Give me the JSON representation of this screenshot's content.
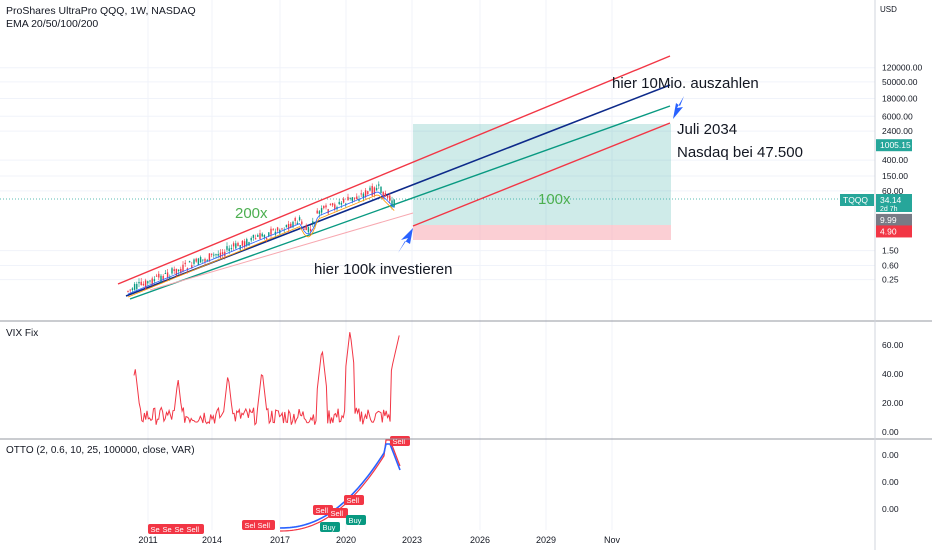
{
  "header": {
    "symbol_line": "ProShares UltraPro QQQ, 1W, NASDAQ",
    "indicator_line": "EMA 20/50/100/200",
    "currency": "USD"
  },
  "price_axis": {
    "ticks": [
      "120000.00",
      "50000.00",
      "18000.00",
      "6000.00",
      "2400.00",
      "1005.15",
      "400.00",
      "150.00",
      "60.00",
      "9.99",
      "4.90",
      "1.50",
      "0.60",
      "0.25"
    ],
    "ticks_display": [
      {
        "label": "120000.00",
        "value": 120000
      },
      {
        "label": "50000.00",
        "value": 50000
      },
      {
        "label": "18000.00",
        "value": 18000
      },
      {
        "label": "6000.00",
        "value": 6000
      },
      {
        "label": "2400.00",
        "value": 2400
      },
      {
        "label": "400.00",
        "value": 400
      },
      {
        "label": "150.00",
        "value": 150
      },
      {
        "label": "60.00",
        "value": 60
      },
      {
        "label": "1.50",
        "value": 1.5
      },
      {
        "label": "0.60",
        "value": 0.6
      },
      {
        "label": "0.25",
        "value": 0.25
      }
    ],
    "badges": [
      {
        "label": "1005.15",
        "value": 1005.15,
        "color": "#26a69a"
      },
      {
        "label": "34.14",
        "value": 34.14,
        "color": "#26a69a",
        "sub": "2d 7h"
      },
      {
        "label": "9.99",
        "value": 9.99,
        "color": "#787b86"
      },
      {
        "label": "4.90",
        "value": 4.9,
        "color": "#f23645"
      }
    ],
    "symbol_tag": "TQQQ"
  },
  "time_axis": {
    "labels": [
      "2011",
      "2014",
      "2017",
      "2020",
      "2023",
      "2026",
      "2029",
      "Nov"
    ]
  },
  "annotations": {
    "payout": "hier 10Mio. auszahlen",
    "date_target": "Juli 2034",
    "nasdaq_target": "Nasdaq bei 47.500",
    "invest": "hier 100k investieren",
    "x200": "200x",
    "x100": "100x"
  },
  "vix_pane": {
    "title": "VIX Fix",
    "ticks": [
      "60.00",
      "40.00",
      "20.00",
      "0.00"
    ]
  },
  "otto_pane": {
    "title": "OTTO (2, 0.6, 10, 25, 100000, close, VAR)",
    "ticks": [
      "0.00",
      "0.00",
      "0.00"
    ],
    "signals": [
      {
        "label": "Sell",
        "type": "sell"
      },
      {
        "label": "Sell",
        "type": "sell"
      },
      {
        "label": "Sell",
        "type": "sell"
      },
      {
        "label": "Sell",
        "type": "sell"
      },
      {
        "label": "Sell",
        "type": "sell"
      },
      {
        "label": "Sell",
        "type": "sell"
      },
      {
        "label": "Sell",
        "type": "sell"
      },
      {
        "label": "Sell",
        "type": "sell"
      },
      {
        "label": "Sell",
        "type": "sell"
      },
      {
        "label": "Buy",
        "type": "buy"
      },
      {
        "label": "Buy",
        "type": "buy"
      },
      {
        "label": "Sell",
        "type": "sell"
      }
    ]
  },
  "colors": {
    "up_line": "#f23645",
    "blue_line": "#0d2a8a",
    "green_line": "#089981",
    "target_zone": "#26a69a",
    "stop_zone": "#f7a8b0",
    "arrow": "#2962ff"
  },
  "chart_data": {
    "type": "line",
    "title": "ProShares UltraPro QQQ, 1W, NASDAQ",
    "scale": "log",
    "x": [
      "2011",
      "2014",
      "2017",
      "2020",
      "2023",
      "2026",
      "2029",
      "Nov"
    ],
    "series": [],
    "current_price": 34.14,
    "target_price": 1005.15,
    "entry_price": 9.99,
    "stop_price": 4.9,
    "vix_fix_range": [
      0,
      60
    ],
    "grid": true
  }
}
